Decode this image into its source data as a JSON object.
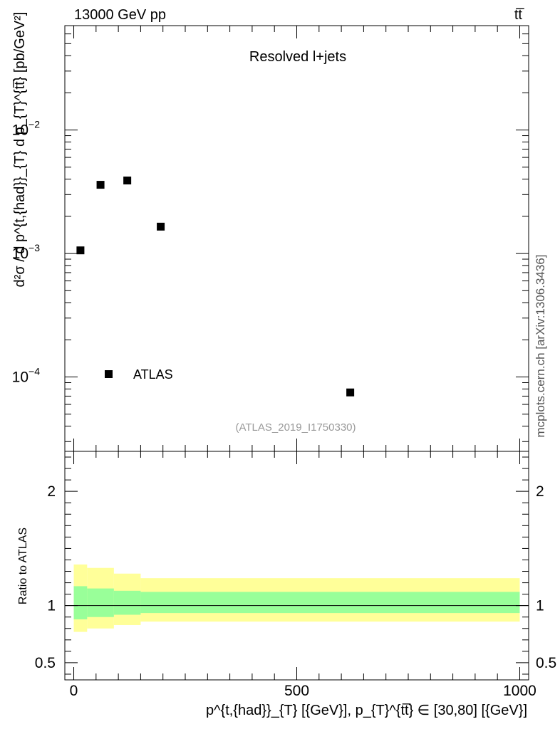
{
  "header": {
    "left": "13000 GeV pp",
    "right": "tt̅"
  },
  "credit": "mcplots.cern.ch [arXiv:1306.3436]",
  "analysis_id": "(ATLAS_2019_I1750330)",
  "colors": {
    "marker": "#000000",
    "band_inner": "#99ff99",
    "band_outer": "#ffff99"
  },
  "chart_data": [
    {
      "type": "scatter",
      "title": "Resolved l+jets",
      "ylabel": "d²σ / d p^{t,{had}}_{T} d p_{T}^{tt̅} [pb/GeV²]",
      "yscale": "log",
      "xlim": [
        -20,
        1020
      ],
      "ylim": [
        2.5e-05,
        0.07
      ],
      "y_ticks": [
        {
          "value": 0.0001,
          "base": "10",
          "exp": "−4"
        },
        {
          "value": 0.001,
          "base": "10",
          "exp": "−3"
        },
        {
          "value": 0.01,
          "base": "10",
          "exp": "−2"
        }
      ],
      "legend": {
        "label": "ATLAS",
        "position": "bottom-left"
      },
      "series": [
        {
          "name": "ATLAS",
          "x": [
            15,
            60,
            120,
            195,
            620
          ],
          "y": [
            0.00106,
            0.0036,
            0.0039,
            0.00165,
            7.5e-05
          ]
        }
      ]
    },
    {
      "type": "area",
      "ylabel": "Ratio to ATLAS",
      "xlabel": "p^{t,{had}}_{T} [{GeV}], p_{T}^{tt̅} ∈ [30,80] [{GeV}]",
      "xlim": [
        -20,
        1020
      ],
      "ylim": [
        0.35,
        2.35
      ],
      "x_ticks": [
        {
          "value": 0,
          "label": "0"
        },
        {
          "value": 500,
          "label": "500"
        },
        {
          "value": 1000,
          "label": "1000"
        }
      ],
      "y_ticks": [
        {
          "value": 0.5,
          "label": "0.5"
        },
        {
          "value": 1,
          "label": "1"
        },
        {
          "value": 2,
          "label": "2"
        }
      ],
      "reference_line": 1,
      "bins": [
        {
          "x0": 0,
          "x1": 30,
          "inner": [
            0.88,
            1.17
          ],
          "outer": [
            0.77,
            1.36
          ]
        },
        {
          "x0": 30,
          "x1": 90,
          "inner": [
            0.9,
            1.15
          ],
          "outer": [
            0.8,
            1.33
          ]
        },
        {
          "x0": 90,
          "x1": 150,
          "inner": [
            0.92,
            1.13
          ],
          "outer": [
            0.83,
            1.28
          ]
        },
        {
          "x0": 150,
          "x1": 1000,
          "inner": [
            0.935,
            1.12
          ],
          "outer": [
            0.86,
            1.24
          ]
        }
      ]
    }
  ]
}
